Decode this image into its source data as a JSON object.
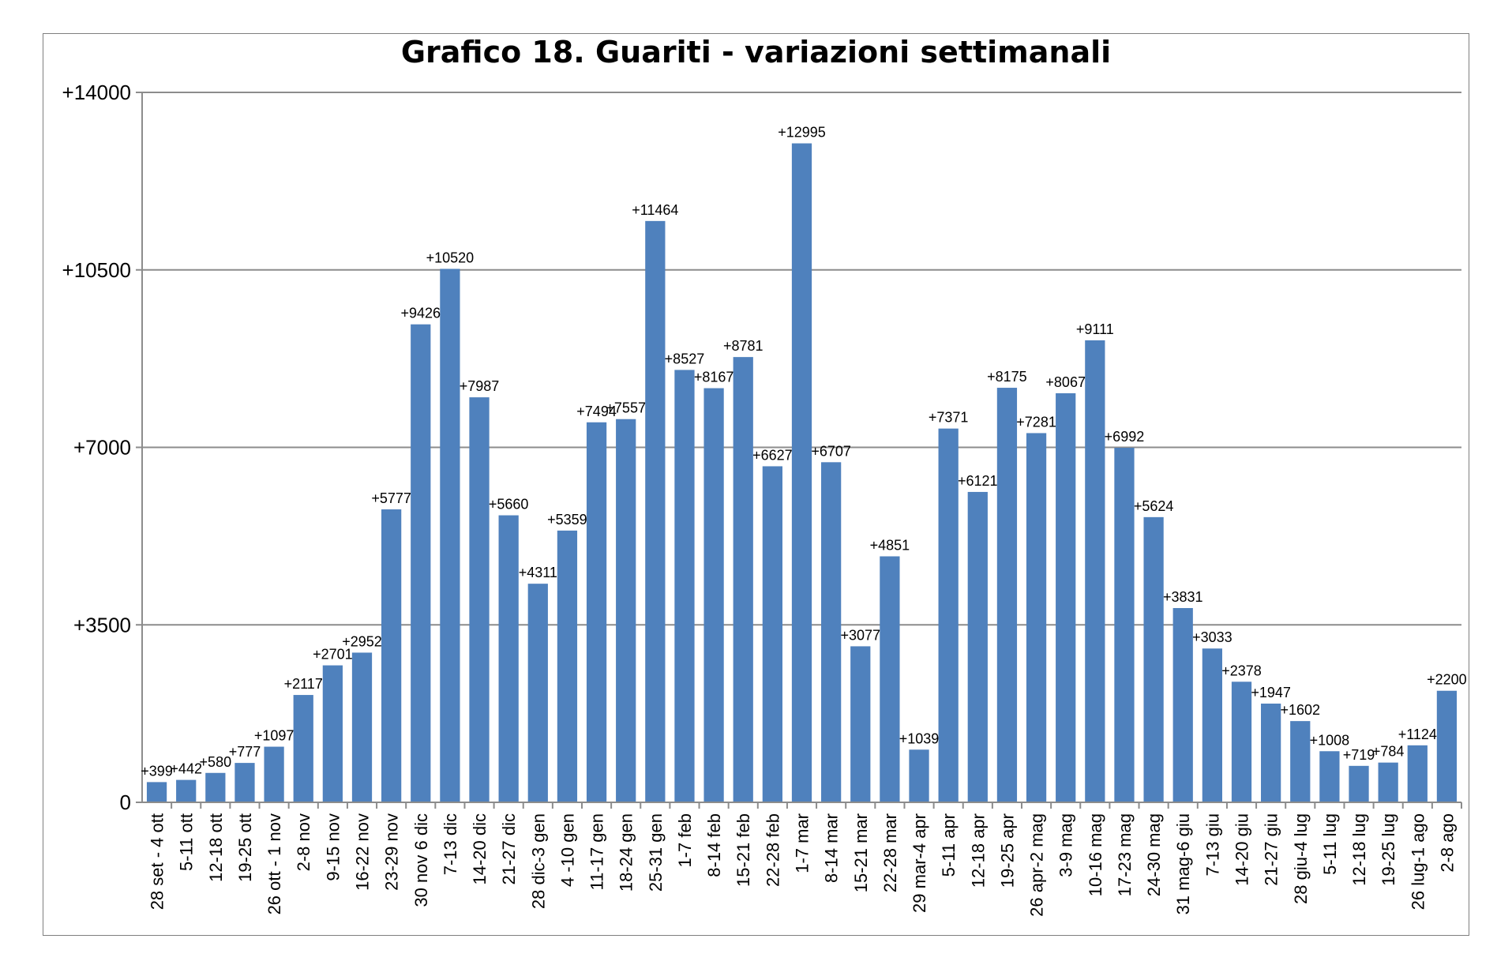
{
  "chart_data": {
    "type": "bar",
    "title": "Grafico 18. Guariti - variazioni settimanali",
    "xlabel": "",
    "ylabel": "",
    "ylim": [
      0,
      14000
    ],
    "yticks": [
      "0",
      "+3500",
      "+7000",
      "+10500",
      "+14000"
    ],
    "ytick_values": [
      0,
      3500,
      7000,
      10500,
      14000
    ],
    "grid": true,
    "legend": "none",
    "bar_color": "#4f81bd",
    "categories": [
      "28 set - 4 ott",
      "5-11 ott",
      "12-18 ott",
      "19-25 ott",
      "26 ott - 1 nov",
      "2-8 nov",
      "9-15 nov",
      "16-22 nov",
      "23-29 nov",
      "30 nov 6 dic",
      "7-13 dic",
      "14-20 dic",
      "21-27 dic",
      "28 dic-3 gen",
      "4 -10 gen",
      "11-17 gen",
      "18-24 gen",
      "25-31 gen",
      "1-7 feb",
      "8-14 feb",
      "15-21 feb",
      "22-28 feb",
      "1-7 mar",
      "8-14 mar",
      "15-21 mar",
      "22-28 mar",
      "29 mar-4 apr",
      "5-11 apr",
      "12-18 apr",
      "19-25 apr",
      "26 apr-2 mag",
      "3-9 mag",
      "10-16 mag",
      "17-23 mag",
      "24-30 mag",
      "31 mag-6 giu",
      "7-13 giu",
      "14-20 giu",
      "21-27 giu",
      "28 giu-4 lug",
      "5-11 lug",
      "12-18 lug",
      "19-25 lug",
      "26 lug-1 ago",
      "2-8 ago"
    ],
    "values": [
      399,
      442,
      580,
      777,
      1097,
      2117,
      2701,
      2952,
      5777,
      9426,
      10520,
      7987,
      5660,
      4311,
      5359,
      7494,
      7557,
      11464,
      8527,
      8167,
      8781,
      6627,
      12995,
      6707,
      3077,
      4851,
      1039,
      7371,
      6121,
      8175,
      7281,
      8067,
      9111,
      6992,
      5624,
      3831,
      3033,
      2378,
      1947,
      1602,
      1008,
      719,
      784,
      1124,
      2200
    ],
    "data_labels": [
      "+399",
      "+442",
      "+580",
      "+777",
      "+1097",
      "+2117",
      "+2701",
      "+2952",
      "+5777",
      "+9426",
      "+10520",
      "+7987",
      "+5660",
      "+4311",
      "+5359",
      "+7494",
      "+7557",
      "+11464",
      "+8527",
      "+8167",
      "+8781",
      "+6627",
      "+12995",
      "+6707",
      "+3077",
      "+4851",
      "+1039",
      "+7371",
      "+6121",
      "+8175",
      "+7281",
      "+8067",
      "+9111",
      "+6992",
      "+5624",
      "+3831",
      "+3033",
      "+2378",
      "+1947",
      "+1602",
      "+1008",
      "+719",
      "+784",
      "+1124",
      "+2200"
    ]
  }
}
